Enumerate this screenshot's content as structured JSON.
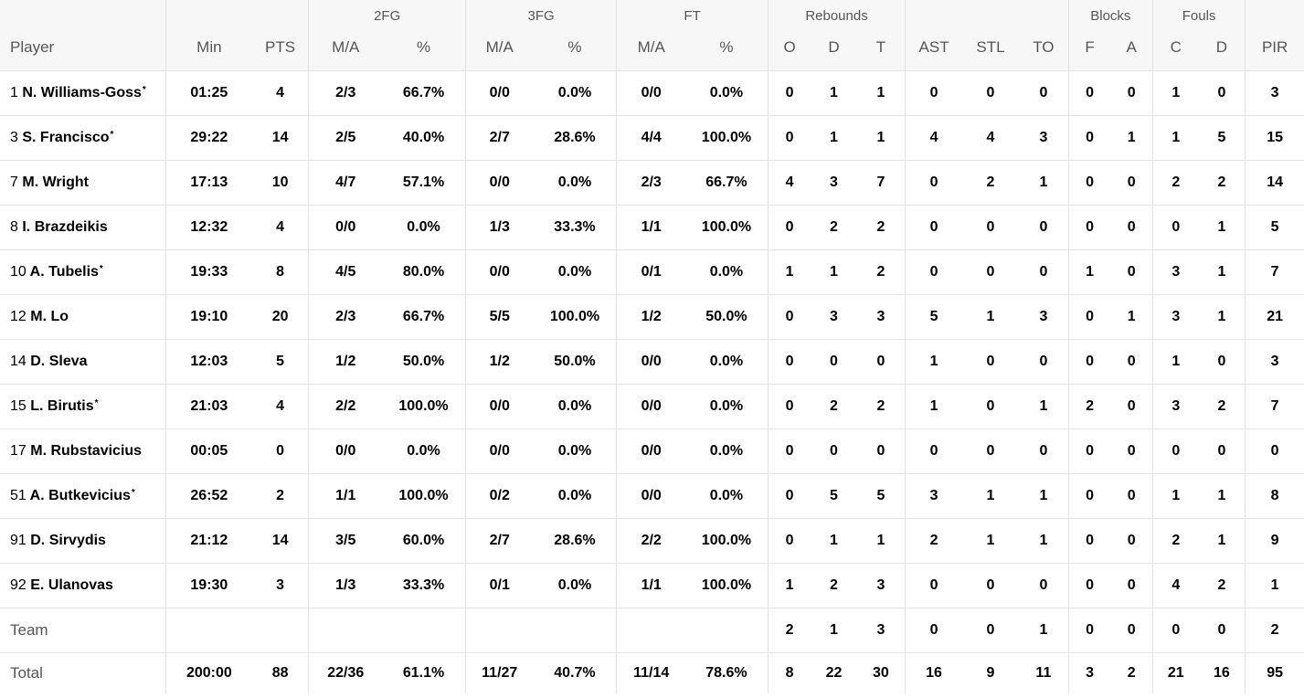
{
  "group_headers": {
    "fg2": "2FG",
    "fg3": "3FG",
    "ft": "FT",
    "rebounds": "Rebounds",
    "blocks": "Blocks",
    "fouls": "Fouls"
  },
  "columns": {
    "player": "Player",
    "min": "Min",
    "pts": "PTS",
    "fg2_ma": "M/A",
    "fg2_pct": "%",
    "fg3_ma": "M/A",
    "fg3_pct": "%",
    "ft_ma": "M/A",
    "ft_pct": "%",
    "reb_o": "O",
    "reb_d": "D",
    "reb_t": "T",
    "ast": "AST",
    "stl": "STL",
    "to": "TO",
    "blk_f": "F",
    "blk_a": "A",
    "foul_c": "C",
    "foul_d": "D",
    "pir": "PIR"
  },
  "players": [
    {
      "num": "1",
      "name": "N. Williams-Goss",
      "star": "*",
      "min": "01:25",
      "pts": "4",
      "fg2_ma": "2/3",
      "fg2_pct": "66.7%",
      "fg3_ma": "0/0",
      "fg3_pct": "0.0%",
      "ft_ma": "0/0",
      "ft_pct": "0.0%",
      "reb_o": "0",
      "reb_d": "1",
      "reb_t": "1",
      "ast": "0",
      "stl": "0",
      "to": "0",
      "blk_f": "0",
      "blk_a": "0",
      "foul_c": "1",
      "foul_d": "0",
      "pir": "3"
    },
    {
      "num": "3",
      "name": "S. Francisco",
      "star": "*",
      "min": "29:22",
      "pts": "14",
      "fg2_ma": "2/5",
      "fg2_pct": "40.0%",
      "fg3_ma": "2/7",
      "fg3_pct": "28.6%",
      "ft_ma": "4/4",
      "ft_pct": "100.0%",
      "reb_o": "0",
      "reb_d": "1",
      "reb_t": "1",
      "ast": "4",
      "stl": "4",
      "to": "3",
      "blk_f": "0",
      "blk_a": "1",
      "foul_c": "1",
      "foul_d": "5",
      "pir": "15"
    },
    {
      "num": "7",
      "name": "M. Wright",
      "star": "",
      "min": "17:13",
      "pts": "10",
      "fg2_ma": "4/7",
      "fg2_pct": "57.1%",
      "fg3_ma": "0/0",
      "fg3_pct": "0.0%",
      "ft_ma": "2/3",
      "ft_pct": "66.7%",
      "reb_o": "4",
      "reb_d": "3",
      "reb_t": "7",
      "ast": "0",
      "stl": "2",
      "to": "1",
      "blk_f": "0",
      "blk_a": "0",
      "foul_c": "2",
      "foul_d": "2",
      "pir": "14"
    },
    {
      "num": "8",
      "name": "I. Brazdeikis",
      "star": "",
      "min": "12:32",
      "pts": "4",
      "fg2_ma": "0/0",
      "fg2_pct": "0.0%",
      "fg3_ma": "1/3",
      "fg3_pct": "33.3%",
      "ft_ma": "1/1",
      "ft_pct": "100.0%",
      "reb_o": "0",
      "reb_d": "2",
      "reb_t": "2",
      "ast": "0",
      "stl": "0",
      "to": "0",
      "blk_f": "0",
      "blk_a": "0",
      "foul_c": "0",
      "foul_d": "1",
      "pir": "5"
    },
    {
      "num": "10",
      "name": "A. Tubelis",
      "star": "*",
      "min": "19:33",
      "pts": "8",
      "fg2_ma": "4/5",
      "fg2_pct": "80.0%",
      "fg3_ma": "0/0",
      "fg3_pct": "0.0%",
      "ft_ma": "0/1",
      "ft_pct": "0.0%",
      "reb_o": "1",
      "reb_d": "1",
      "reb_t": "2",
      "ast": "0",
      "stl": "0",
      "to": "0",
      "blk_f": "1",
      "blk_a": "0",
      "foul_c": "3",
      "foul_d": "1",
      "pir": "7"
    },
    {
      "num": "12",
      "name": "M. Lo",
      "star": "",
      "min": "19:10",
      "pts": "20",
      "fg2_ma": "2/3",
      "fg2_pct": "66.7%",
      "fg3_ma": "5/5",
      "fg3_pct": "100.0%",
      "ft_ma": "1/2",
      "ft_pct": "50.0%",
      "reb_o": "0",
      "reb_d": "3",
      "reb_t": "3",
      "ast": "5",
      "stl": "1",
      "to": "3",
      "blk_f": "0",
      "blk_a": "1",
      "foul_c": "3",
      "foul_d": "1",
      "pir": "21"
    },
    {
      "num": "14",
      "name": "D. Sleva",
      "star": "",
      "min": "12:03",
      "pts": "5",
      "fg2_ma": "1/2",
      "fg2_pct": "50.0%",
      "fg3_ma": "1/2",
      "fg3_pct": "50.0%",
      "ft_ma": "0/0",
      "ft_pct": "0.0%",
      "reb_o": "0",
      "reb_d": "0",
      "reb_t": "0",
      "ast": "1",
      "stl": "0",
      "to": "0",
      "blk_f": "0",
      "blk_a": "0",
      "foul_c": "1",
      "foul_d": "0",
      "pir": "3"
    },
    {
      "num": "15",
      "name": "L. Birutis",
      "star": "*",
      "min": "21:03",
      "pts": "4",
      "fg2_ma": "2/2",
      "fg2_pct": "100.0%",
      "fg3_ma": "0/0",
      "fg3_pct": "0.0%",
      "ft_ma": "0/0",
      "ft_pct": "0.0%",
      "reb_o": "0",
      "reb_d": "2",
      "reb_t": "2",
      "ast": "1",
      "stl": "0",
      "to": "1",
      "blk_f": "2",
      "blk_a": "0",
      "foul_c": "3",
      "foul_d": "2",
      "pir": "7"
    },
    {
      "num": "17",
      "name": "M. Rubstavicius",
      "star": "",
      "min": "00:05",
      "pts": "0",
      "fg2_ma": "0/0",
      "fg2_pct": "0.0%",
      "fg3_ma": "0/0",
      "fg3_pct": "0.0%",
      "ft_ma": "0/0",
      "ft_pct": "0.0%",
      "reb_o": "0",
      "reb_d": "0",
      "reb_t": "0",
      "ast": "0",
      "stl": "0",
      "to": "0",
      "blk_f": "0",
      "blk_a": "0",
      "foul_c": "0",
      "foul_d": "0",
      "pir": "0"
    },
    {
      "num": "51",
      "name": "A. Butkevicius",
      "star": "*",
      "min": "26:52",
      "pts": "2",
      "fg2_ma": "1/1",
      "fg2_pct": "100.0%",
      "fg3_ma": "0/2",
      "fg3_pct": "0.0%",
      "ft_ma": "0/0",
      "ft_pct": "0.0%",
      "reb_o": "0",
      "reb_d": "5",
      "reb_t": "5",
      "ast": "3",
      "stl": "1",
      "to": "1",
      "blk_f": "0",
      "blk_a": "0",
      "foul_c": "1",
      "foul_d": "1",
      "pir": "8"
    },
    {
      "num": "91",
      "name": "D. Sirvydis",
      "star": "",
      "min": "21:12",
      "pts": "14",
      "fg2_ma": "3/5",
      "fg2_pct": "60.0%",
      "fg3_ma": "2/7",
      "fg3_pct": "28.6%",
      "ft_ma": "2/2",
      "ft_pct": "100.0%",
      "reb_o": "0",
      "reb_d": "1",
      "reb_t": "1",
      "ast": "2",
      "stl": "1",
      "to": "1",
      "blk_f": "0",
      "blk_a": "0",
      "foul_c": "2",
      "foul_d": "1",
      "pir": "9"
    },
    {
      "num": "92",
      "name": "E. Ulanovas",
      "star": "",
      "min": "19:30",
      "pts": "3",
      "fg2_ma": "1/3",
      "fg2_pct": "33.3%",
      "fg3_ma": "0/1",
      "fg3_pct": "0.0%",
      "ft_ma": "1/1",
      "ft_pct": "100.0%",
      "reb_o": "1",
      "reb_d": "2",
      "reb_t": "3",
      "ast": "0",
      "stl": "0",
      "to": "0",
      "blk_f": "0",
      "blk_a": "0",
      "foul_c": "4",
      "foul_d": "2",
      "pir": "1"
    }
  ],
  "team": {
    "label": "Team",
    "reb_o": "2",
    "reb_d": "1",
    "reb_t": "3",
    "ast": "0",
    "stl": "0",
    "to": "1",
    "blk_f": "0",
    "blk_a": "0",
    "foul_c": "0",
    "foul_d": "0",
    "pir": "2"
  },
  "total": {
    "label": "Total",
    "min": "200:00",
    "pts": "88",
    "fg2_ma": "22/36",
    "fg2_pct": "61.1%",
    "fg3_ma": "11/27",
    "fg3_pct": "40.7%",
    "ft_ma": "11/14",
    "ft_pct": "78.6%",
    "reb_o": "8",
    "reb_d": "22",
    "reb_t": "30",
    "ast": "16",
    "stl": "9",
    "to": "11",
    "blk_f": "3",
    "blk_a": "2",
    "foul_c": "21",
    "foul_d": "16",
    "pir": "95"
  }
}
